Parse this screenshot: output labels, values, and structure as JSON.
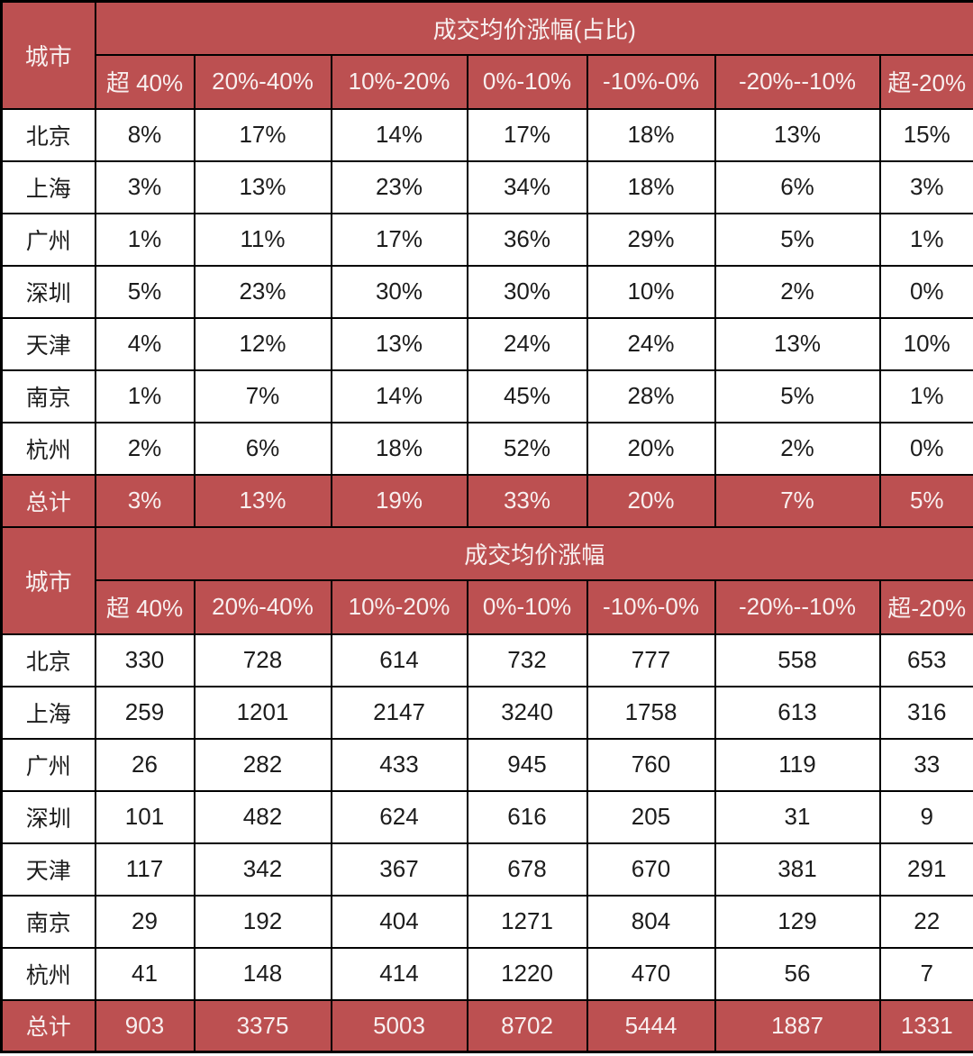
{
  "colors": {
    "header_bg": "#bc5051",
    "header_text": "#f8efef",
    "body_text": "#1c1c1c",
    "border": "#000000",
    "row_bg": "#ffffff"
  },
  "chart_data": [
    {
      "type": "table",
      "title": "成交均价涨幅(占比)",
      "city_column_header": "城市",
      "columns": [
        "超 40%",
        "20%-40%",
        "10%-20%",
        "0%-10%",
        "-10%-0%",
        "-20%--10%",
        "超-20%"
      ],
      "rows": [
        {
          "city": "北京",
          "is_total": false,
          "values": [
            "8%",
            "17%",
            "14%",
            "17%",
            "18%",
            "13%",
            "15%"
          ]
        },
        {
          "city": "上海",
          "is_total": false,
          "values": [
            "3%",
            "13%",
            "23%",
            "34%",
            "18%",
            "6%",
            "3%"
          ]
        },
        {
          "city": "广州",
          "is_total": false,
          "values": [
            "1%",
            "11%",
            "17%",
            "36%",
            "29%",
            "5%",
            "1%"
          ]
        },
        {
          "city": "深圳",
          "is_total": false,
          "values": [
            "5%",
            "23%",
            "30%",
            "30%",
            "10%",
            "2%",
            "0%"
          ]
        },
        {
          "city": "天津",
          "is_total": false,
          "values": [
            "4%",
            "12%",
            "13%",
            "24%",
            "24%",
            "13%",
            "10%"
          ]
        },
        {
          "city": "南京",
          "is_total": false,
          "values": [
            "1%",
            "7%",
            "14%",
            "45%",
            "28%",
            "5%",
            "1%"
          ]
        },
        {
          "city": "杭州",
          "is_total": false,
          "values": [
            "2%",
            "6%",
            "18%",
            "52%",
            "20%",
            "2%",
            "0%"
          ]
        },
        {
          "city": "总计",
          "is_total": true,
          "values": [
            "3%",
            "13%",
            "19%",
            "33%",
            "20%",
            "7%",
            "5%"
          ]
        }
      ]
    },
    {
      "type": "table",
      "title": "成交均价涨幅",
      "city_column_header": "城市",
      "columns": [
        "超 40%",
        "20%-40%",
        "10%-20%",
        "0%-10%",
        "-10%-0%",
        "-20%--10%",
        "超-20%"
      ],
      "rows": [
        {
          "city": "北京",
          "is_total": false,
          "values": [
            "330",
            "728",
            "614",
            "732",
            "777",
            "558",
            "653"
          ]
        },
        {
          "city": "上海",
          "is_total": false,
          "values": [
            "259",
            "1201",
            "2147",
            "3240",
            "1758",
            "613",
            "316"
          ]
        },
        {
          "city": "广州",
          "is_total": false,
          "values": [
            "26",
            "282",
            "433",
            "945",
            "760",
            "119",
            "33"
          ]
        },
        {
          "city": "深圳",
          "is_total": false,
          "values": [
            "101",
            "482",
            "624",
            "616",
            "205",
            "31",
            "9"
          ]
        },
        {
          "city": "天津",
          "is_total": false,
          "values": [
            "117",
            "342",
            "367",
            "678",
            "670",
            "381",
            "291"
          ]
        },
        {
          "city": "南京",
          "is_total": false,
          "values": [
            "29",
            "192",
            "404",
            "1271",
            "804",
            "129",
            "22"
          ]
        },
        {
          "city": "杭州",
          "is_total": false,
          "values": [
            "41",
            "148",
            "414",
            "1220",
            "470",
            "56",
            "7"
          ]
        },
        {
          "city": "总计",
          "is_total": true,
          "values": [
            "903",
            "3375",
            "5003",
            "8702",
            "5444",
            "1887",
            "1331"
          ]
        }
      ]
    }
  ]
}
